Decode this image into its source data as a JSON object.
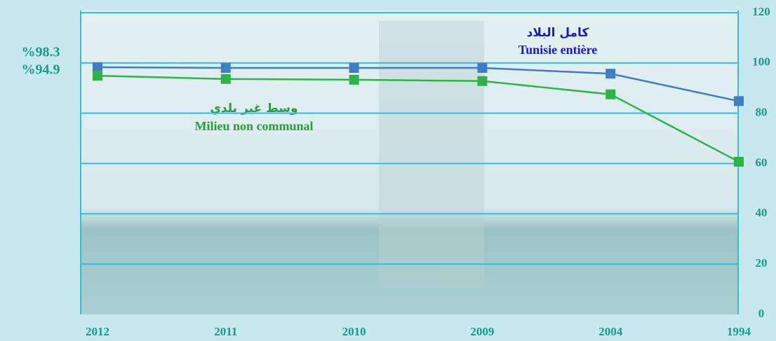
{
  "chart_data": {
    "type": "line",
    "categories": [
      "2012",
      "2011",
      "2010",
      "2009",
      "2004",
      "1994"
    ],
    "series": [
      {
        "name": "Tunisie entière",
        "name_ar": "كامل البلاد",
        "color": "#3d7fc4",
        "label_color": "#1a1acc",
        "values": [
          98.3,
          98,
          98,
          98,
          95.7,
          84.8
        ],
        "value_labels": [
          "%98.3",
          null,
          null,
          null,
          null,
          null
        ]
      },
      {
        "name": "Milieu non communal",
        "name_ar": "وسط غير بلدي",
        "color": "#2db34a",
        "label_color": "#2a9d3a",
        "values": [
          94.9,
          93.6,
          93.3,
          92.8,
          87.5,
          60.7
        ],
        "value_labels": [
          "%94.9",
          null,
          null,
          null,
          null,
          null
        ]
      }
    ],
    "ylim": [
      0,
      120
    ],
    "yticks": [
      0,
      20,
      40,
      60,
      80,
      100,
      120
    ],
    "grid": true
  }
}
